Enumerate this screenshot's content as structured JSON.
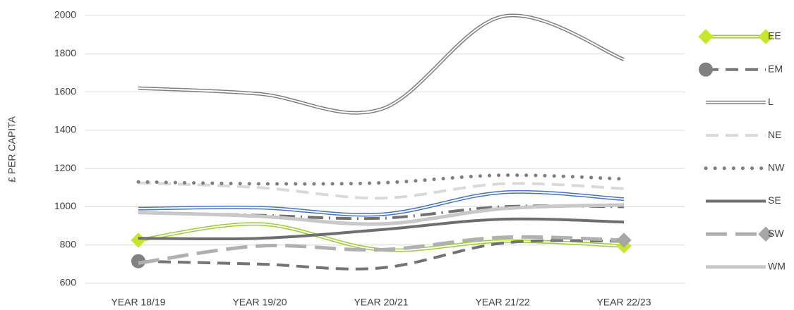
{
  "chart_data": {
    "type": "line",
    "y_label": "£ PER CAPITA",
    "categories": [
      "YEAR 18/19",
      "YEAR 19/20",
      "YEAR 20/21",
      "YEAR 21/22",
      "YEAR 22/23"
    ],
    "ylim": [
      600,
      2000
    ],
    "yticks": [
      600,
      800,
      1000,
      1200,
      1400,
      1600,
      1800,
      2000
    ],
    "grid": true,
    "smooth": true,
    "legend": "right",
    "series": [
      {
        "color": "#4472c4",
        "style": "double",
        "values": [
          990,
          995,
          960,
          1075,
          1040
        ]
      },
      {
        "color": "#707070",
        "style": "dashdot",
        "values": [
          970,
          955,
          940,
          1000,
          1000
        ]
      },
      {
        "name": "EE",
        "color": "#9acd32",
        "style": "double",
        "marker": "diamond",
        "marker_color": "#c8e62a",
        "marker_points": [
          0,
          4
        ],
        "values": [
          825,
          910,
          775,
          820,
          795
        ]
      },
      {
        "name": "EM",
        "color": "#737373",
        "style": "dash",
        "marker": "circle",
        "marker_color": "#808080",
        "marker_points": [
          0
        ],
        "values": [
          715,
          700,
          680,
          810,
          820
        ]
      },
      {
        "name": "L",
        "color": "#7f7f7f",
        "style": "double",
        "values": [
          1620,
          1590,
          1510,
          1995,
          1770
        ]
      },
      {
        "name": "NE",
        "color": "#d9d9d9",
        "style": "dash",
        "values": [
          1125,
          1100,
          1045,
          1120,
          1095
        ]
      },
      {
        "name": "NW",
        "color": "#7f7f7f",
        "style": "dot",
        "values": [
          1130,
          1120,
          1125,
          1165,
          1145
        ]
      },
      {
        "name": "SE",
        "color": "#6e6e6e",
        "style": "solid",
        "values": [
          835,
          835,
          880,
          935,
          920
        ]
      },
      {
        "name": "SW",
        "color": "#b0b0b0",
        "style": "longdash",
        "marker": "diamond",
        "marker_color": "#a6a6a6",
        "marker_points": [
          4
        ],
        "values": [
          705,
          795,
          775,
          840,
          825
        ]
      },
      {
        "name": "WM",
        "color": "#c8c8c8",
        "style": "thick",
        "values": [
          970,
          950,
          910,
          990,
          1010
        ]
      }
    ]
  }
}
